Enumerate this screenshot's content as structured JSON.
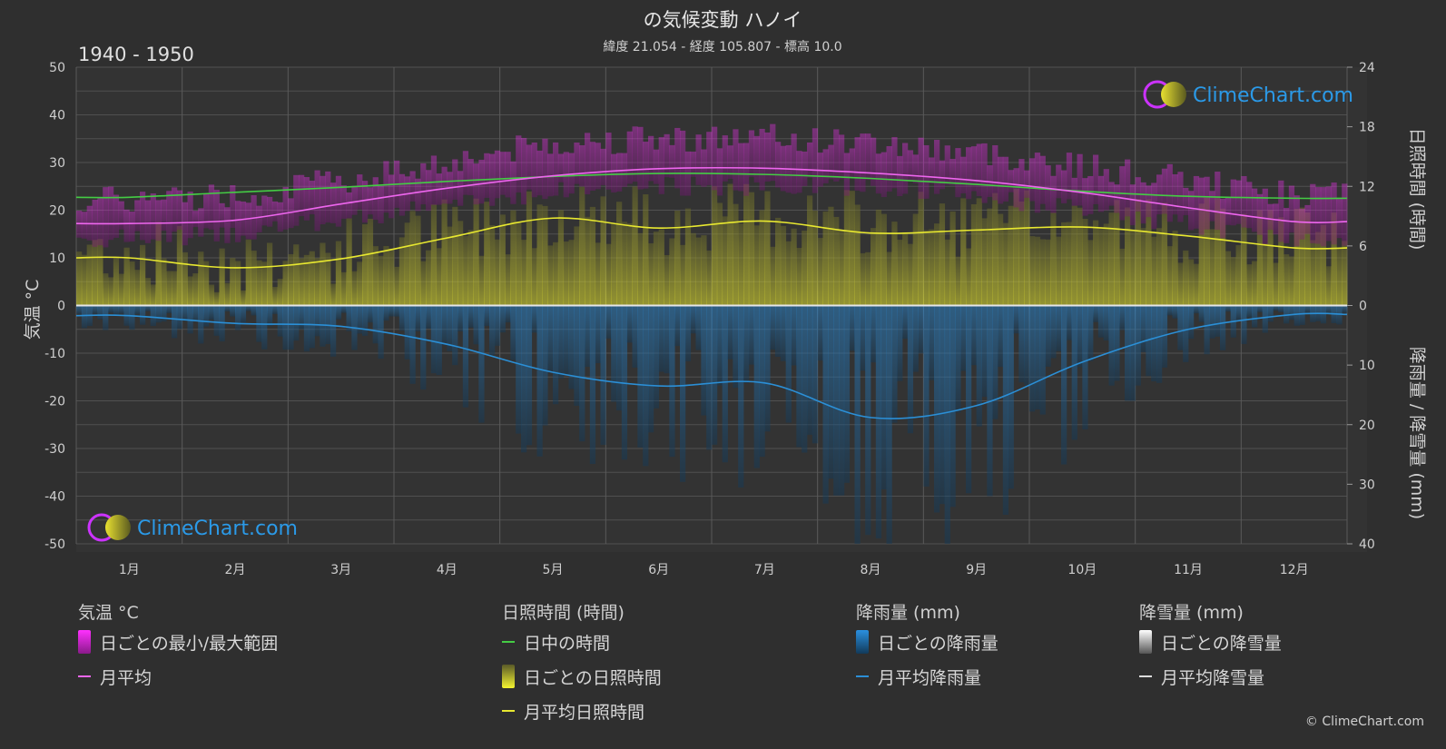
{
  "chart_data": {
    "type": "area",
    "title": "の気候変動 ハノイ",
    "subtitle": "緯度 21.054 - 経度 105.807 - 標高 10.0",
    "period": "1940 - 1950",
    "watermark": "ClimeChart.com",
    "y_left": {
      "label": "気温 °C",
      "min": -50,
      "max": 50,
      "ticks": [
        50,
        40,
        30,
        20,
        10,
        0,
        -10,
        -20,
        -30,
        -40,
        -50
      ]
    },
    "y_right_top": {
      "label": "日照時間 (時間)",
      "min": 0,
      "max": 24,
      "ticks": [
        24,
        18,
        12,
        6,
        0
      ]
    },
    "y_right_bottom": {
      "label": "降雨量 / 降雪量 (mm)",
      "min": 0,
      "max": 40,
      "ticks": [
        0,
        10,
        20,
        30,
        40
      ]
    },
    "categories": [
      "1月",
      "2月",
      "3月",
      "4月",
      "5月",
      "6月",
      "7月",
      "8月",
      "9月",
      "10月",
      "11月",
      "12月"
    ],
    "series": [
      {
        "name": "日中の時間",
        "unit": "hours",
        "color": "#44cc44",
        "values": [
          10.9,
          11.4,
          11.9,
          12.5,
          13.0,
          13.3,
          13.2,
          12.8,
          12.2,
          11.5,
          11.0,
          10.8
        ]
      },
      {
        "name": "月平均",
        "unit": "°C",
        "color": "#ee66ee",
        "values": [
          17.2,
          17.9,
          21.3,
          24.6,
          27.2,
          28.7,
          28.8,
          27.8,
          26.2,
          23.7,
          20.5,
          17.6
        ]
      },
      {
        "name": "月平均日照時間",
        "unit": "hours",
        "color": "#e8e830",
        "values": [
          4.8,
          3.8,
          4.7,
          6.8,
          8.8,
          7.8,
          8.5,
          7.3,
          7.6,
          7.9,
          7.0,
          5.8
        ]
      },
      {
        "name": "月平均降雨量",
        "unit": "mm",
        "color": "#2b8fd6",
        "values": [
          1.7,
          3.0,
          3.5,
          6.5,
          11.2,
          13.5,
          13.0,
          18.8,
          16.8,
          9.5,
          4.0,
          1.5
        ]
      },
      {
        "name": "月平均降雪量",
        "unit": "mm",
        "color": "#dddddd",
        "values": [
          0,
          0,
          0,
          0,
          0,
          0,
          0,
          0,
          0,
          0,
          0,
          0
        ]
      }
    ],
    "daily_temp_range": {
      "name": "日ごとの最小/最大範囲",
      "min": [
        14,
        15,
        18,
        21,
        24,
        25,
        25,
        25,
        23,
        20,
        17,
        14
      ],
      "max": [
        21,
        22,
        25,
        29,
        33,
        34,
        34,
        33,
        31,
        28,
        25,
        22
      ]
    },
    "grid": true,
    "legend_position": "bottom"
  },
  "legend": {
    "temp": {
      "title": "気温 °C",
      "items": [
        "日ごとの最小/最大範囲",
        "月平均"
      ]
    },
    "sun": {
      "title": "日照時間 (時間)",
      "items": [
        "日中の時間",
        "日ごとの日照時間",
        "月平均日照時間"
      ]
    },
    "rain": {
      "title": "降雨量 (mm)",
      "items": [
        "日ごとの降雨量",
        "月平均降雨量"
      ]
    },
    "snow": {
      "title": "降雪量 (mm)",
      "items": [
        "日ごとの降雪量",
        "月平均降雪量"
      ]
    }
  },
  "copyright": "© ClimeChart.com"
}
